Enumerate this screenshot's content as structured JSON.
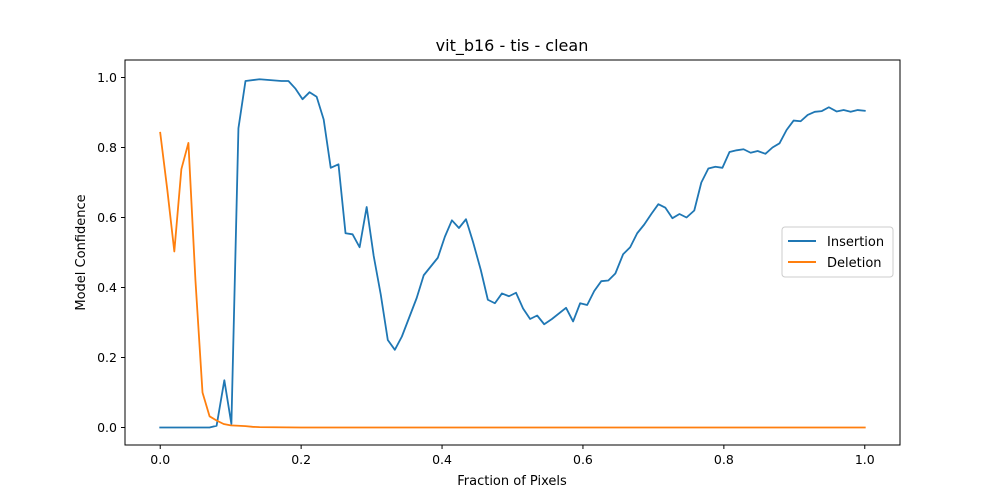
{
  "chart_data": {
    "type": "line",
    "title": "vit_b16 - tis - clean",
    "xlabel": "Fraction of Pixels",
    "ylabel": "Model Confidence",
    "xlim": [
      -0.05,
      1.05
    ],
    "ylim": [
      -0.05,
      1.05
    ],
    "xticks": [
      "0.0",
      "0.2",
      "0.4",
      "0.6",
      "0.8",
      "1.0"
    ],
    "yticks": [
      "0.0",
      "0.2",
      "0.4",
      "0.6",
      "0.8",
      "1.0"
    ],
    "grid": false,
    "legend_position": "center-right",
    "series": [
      {
        "name": "Insertion",
        "color": "#1f77b4",
        "points": [
          [
            0.0,
            0.0
          ],
          [
            0.05,
            0.0
          ],
          [
            0.07,
            0.0
          ],
          [
            0.08,
            0.005
          ],
          [
            0.091,
            0.135
          ],
          [
            0.101,
            0.01
          ],
          [
            0.111,
            0.855
          ],
          [
            0.121,
            0.99
          ],
          [
            0.141,
            0.995
          ],
          [
            0.172,
            0.99
          ],
          [
            0.182,
            0.99
          ],
          [
            0.192,
            0.968
          ],
          [
            0.202,
            0.938
          ],
          [
            0.212,
            0.958
          ],
          [
            0.222,
            0.945
          ],
          [
            0.232,
            0.88
          ],
          [
            0.242,
            0.742
          ],
          [
            0.253,
            0.752
          ],
          [
            0.263,
            0.555
          ],
          [
            0.273,
            0.552
          ],
          [
            0.283,
            0.515
          ],
          [
            0.293,
            0.63
          ],
          [
            0.303,
            0.49
          ],
          [
            0.313,
            0.38
          ],
          [
            0.323,
            0.25
          ],
          [
            0.333,
            0.222
          ],
          [
            0.343,
            0.26
          ],
          [
            0.364,
            0.37
          ],
          [
            0.374,
            0.435
          ],
          [
            0.394,
            0.485
          ],
          [
            0.404,
            0.545
          ],
          [
            0.414,
            0.592
          ],
          [
            0.424,
            0.57
          ],
          [
            0.434,
            0.595
          ],
          [
            0.444,
            0.53
          ],
          [
            0.455,
            0.45
          ],
          [
            0.465,
            0.365
          ],
          [
            0.475,
            0.355
          ],
          [
            0.485,
            0.383
          ],
          [
            0.495,
            0.375
          ],
          [
            0.505,
            0.385
          ],
          [
            0.515,
            0.34
          ],
          [
            0.525,
            0.31
          ],
          [
            0.535,
            0.32
          ],
          [
            0.545,
            0.295
          ],
          [
            0.556,
            0.31
          ],
          [
            0.576,
            0.342
          ],
          [
            0.586,
            0.303
          ],
          [
            0.596,
            0.355
          ],
          [
            0.606,
            0.35
          ],
          [
            0.616,
            0.39
          ],
          [
            0.626,
            0.418
          ],
          [
            0.636,
            0.42
          ],
          [
            0.646,
            0.44
          ],
          [
            0.657,
            0.495
          ],
          [
            0.667,
            0.515
          ],
          [
            0.677,
            0.555
          ],
          [
            0.687,
            0.58
          ],
          [
            0.697,
            0.61
          ],
          [
            0.707,
            0.638
          ],
          [
            0.717,
            0.628
          ],
          [
            0.727,
            0.598
          ],
          [
            0.737,
            0.61
          ],
          [
            0.747,
            0.6
          ],
          [
            0.758,
            0.62
          ],
          [
            0.768,
            0.7
          ],
          [
            0.778,
            0.74
          ],
          [
            0.788,
            0.745
          ],
          [
            0.798,
            0.742
          ],
          [
            0.808,
            0.787
          ],
          [
            0.818,
            0.792
          ],
          [
            0.828,
            0.795
          ],
          [
            0.838,
            0.785
          ],
          [
            0.848,
            0.79
          ],
          [
            0.859,
            0.782
          ],
          [
            0.869,
            0.8
          ],
          [
            0.879,
            0.812
          ],
          [
            0.889,
            0.85
          ],
          [
            0.899,
            0.877
          ],
          [
            0.909,
            0.875
          ],
          [
            0.919,
            0.893
          ],
          [
            0.929,
            0.902
          ],
          [
            0.939,
            0.904
          ],
          [
            0.949,
            0.915
          ],
          [
            0.96,
            0.903
          ],
          [
            0.97,
            0.907
          ],
          [
            0.98,
            0.902
          ],
          [
            0.99,
            0.907
          ],
          [
            1.0,
            0.905
          ]
        ]
      },
      {
        "name": "Deletion",
        "color": "#ff7f0e",
        "points": [
          [
            0.0,
            0.842
          ],
          [
            0.01,
            0.68
          ],
          [
            0.02,
            0.503
          ],
          [
            0.03,
            0.738
          ],
          [
            0.04,
            0.813
          ],
          [
            0.05,
            0.42
          ],
          [
            0.06,
            0.1
          ],
          [
            0.07,
            0.032
          ],
          [
            0.08,
            0.02
          ],
          [
            0.09,
            0.01
          ],
          [
            0.1,
            0.006
          ],
          [
            0.111,
            0.005
          ],
          [
            0.121,
            0.004
          ],
          [
            0.131,
            0.002
          ],
          [
            0.141,
            0.001
          ],
          [
            0.2,
            0.0
          ],
          [
            0.5,
            0.0
          ],
          [
            1.0,
            0.0
          ]
        ]
      }
    ]
  }
}
